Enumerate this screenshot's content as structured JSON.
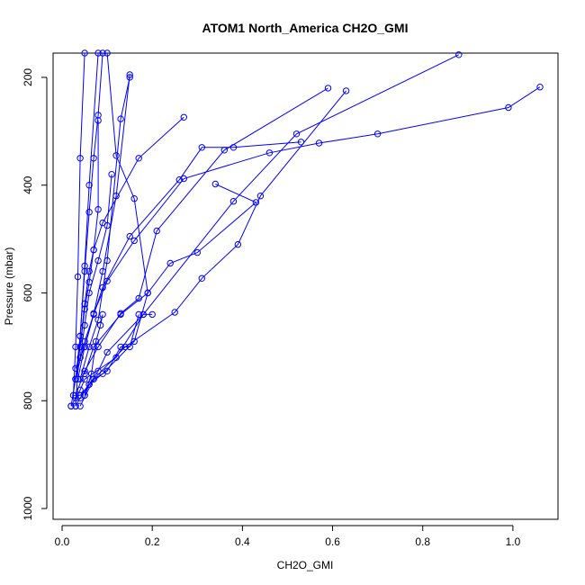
{
  "chart_data": {
    "type": "line",
    "title": "ATOM1 North_America CH2O_GMI",
    "xlabel": "CH2O_GMI",
    "ylabel": "Pressure (mbar)",
    "xlim": [
      -0.02,
      1.1
    ],
    "ylim": [
      1020,
      155
    ],
    "y_reversed": true,
    "x_ticks": [
      0.0,
      0.2,
      0.4,
      0.6,
      0.8,
      1.0
    ],
    "x_tick_labels": [
      "0.0",
      "0.2",
      "0.4",
      "0.6",
      "0.8",
      "1.0"
    ],
    "y_ticks": [
      200,
      400,
      600,
      800,
      1000
    ],
    "y_tick_labels": [
      "200",
      "400",
      "600",
      "800",
      "1000"
    ],
    "grid": false,
    "marker": "open-circle",
    "color": "#0000ff",
    "series": [
      {
        "x": [
          0.88,
          0.52,
          0.38,
          0.18,
          0.12,
          0.05,
          0.04,
          0.03,
          0.02
        ],
        "y": [
          158,
          305,
          430,
          640,
          720,
          760,
          780,
          795,
          810
        ]
      },
      {
        "x": [
          0.1,
          0.12,
          0.16,
          0.19,
          0.16,
          0.09,
          0.06,
          0.04,
          0.03
        ],
        "y": [
          155,
          345,
          425,
          600,
          690,
          750,
          770,
          795,
          810
        ]
      },
      {
        "x": [
          0.09,
          0.08,
          0.07,
          0.06,
          0.05,
          0.04,
          0.03,
          0.02
        ],
        "y": [
          155,
          270,
          350,
          450,
          560,
          680,
          760,
          810
        ]
      },
      {
        "x": [
          0.08,
          0.06,
          0.05,
          0.04,
          0.03
        ],
        "y": [
          155,
          400,
          550,
          680,
          810
        ]
      },
      {
        "x": [
          0.05,
          0.04,
          0.035,
          0.03,
          0.025
        ],
        "y": [
          155,
          350,
          570,
          700,
          790
        ]
      },
      {
        "x": [
          1.06,
          0.99,
          0.7,
          0.57,
          0.46,
          0.27,
          0.16,
          0.1,
          0.07,
          0.05,
          0.035
        ],
        "y": [
          218,
          256,
          305,
          322,
          340,
          388,
          503,
          578,
          638,
          700,
          760
        ]
      },
      {
        "x": [
          0.59,
          0.36,
          0.21,
          0.17,
          0.13,
          0.08,
          0.05,
          0.03
        ],
        "y": [
          220,
          335,
          485,
          610,
          638,
          700,
          745,
          790
        ]
      },
      {
        "x": [
          0.63,
          0.44,
          0.39,
          0.31,
          0.25,
          0.14,
          0.07,
          0.04
        ],
        "y": [
          225,
          420,
          510,
          573,
          636,
          700,
          760,
          810
        ]
      },
      {
        "x": [
          0.53,
          0.38,
          0.31,
          0.26,
          0.15,
          0.09,
          0.05,
          0.03
        ],
        "y": [
          320,
          330,
          330,
          390,
          495,
          590,
          690,
          760
        ]
      },
      {
        "x": [
          0.27,
          0.17,
          0.09,
          0.07,
          0.06,
          0.05,
          0.04,
          0.03
        ],
        "y": [
          274,
          350,
          470,
          520,
          560,
          620,
          700,
          760
        ]
      },
      {
        "x": [
          0.34,
          0.43,
          0.3,
          0.24,
          0.19,
          0.13,
          0.07,
          0.05
        ],
        "y": [
          398,
          432,
          525,
          545,
          600,
          640,
          700,
          750
        ]
      },
      {
        "x": [
          0.15,
          0.12,
          0.09,
          0.07,
          0.05,
          0.03
        ],
        "y": [
          195,
          420,
          560,
          640,
          700,
          740
        ]
      },
      {
        "x": [
          0.15,
          0.13,
          0.1,
          0.08,
          0.06,
          0.04
        ],
        "y": [
          200,
          277,
          540,
          650,
          700,
          760
        ]
      },
      {
        "x": [
          0.11,
          0.1,
          0.08,
          0.06,
          0.05,
          0.04
        ],
        "y": [
          380,
          475,
          540,
          600,
          660,
          720
        ]
      },
      {
        "x": [
          0.08,
          0.08,
          0.07,
          0.06,
          0.05,
          0.04
        ],
        "y": [
          280,
          445,
          520,
          580,
          630,
          700
        ]
      },
      {
        "x": [
          0.2,
          0.18,
          0.1,
          0.08,
          0.06,
          0.05
        ],
        "y": [
          640,
          640,
          710,
          745,
          770,
          790
        ]
      },
      {
        "x": [
          0.17,
          0.15,
          0.13,
          0.1,
          0.07,
          0.04
        ],
        "y": [
          640,
          700,
          700,
          745,
          760,
          790
        ]
      },
      {
        "x": [
          0.09,
          0.085,
          0.075,
          0.065,
          0.05
        ],
        "y": [
          640,
          660,
          690,
          750,
          790
        ]
      }
    ]
  }
}
